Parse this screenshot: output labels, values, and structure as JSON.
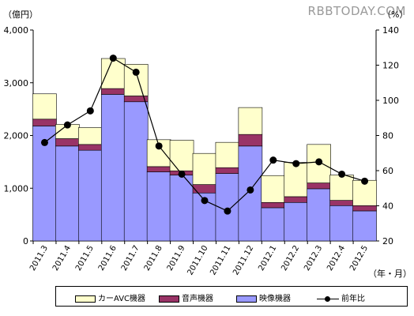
{
  "watermark": "RBBTODAY.COM",
  "chart_data": {
    "type": "bar",
    "stacked": true,
    "categories": [
      "2011.3",
      "2011.4",
      "2011.5",
      "2011.6",
      "2011.7",
      "2011.8",
      "2011.9",
      "2011.10",
      "2011.11",
      "2011.12",
      "2012.1",
      "2012.2",
      "2012.3",
      "2012.4",
      "2012.5"
    ],
    "series": [
      {
        "name": "映像機器",
        "color": "#9999ff",
        "values": [
          2180,
          1800,
          1720,
          2780,
          2640,
          1310,
          1250,
          910,
          1280,
          1800,
          630,
          730,
          990,
          670,
          570
        ]
      },
      {
        "name": "音声機器",
        "color": "#993366",
        "values": [
          130,
          140,
          110,
          110,
          110,
          100,
          80,
          160,
          110,
          220,
          100,
          110,
          110,
          100,
          100
        ]
      },
      {
        "name": "カーAVC機器",
        "color": "#ffffcc",
        "values": [
          480,
          270,
          320,
          570,
          600,
          510,
          580,
          590,
          480,
          510,
          510,
          650,
          730,
          480,
          480
        ]
      }
    ],
    "line_series": {
      "name": "前年比",
      "color": "#000000",
      "axis": "right",
      "values": [
        76,
        86,
        94,
        124,
        116,
        74,
        58,
        43,
        37,
        49,
        66,
        64,
        65,
        58,
        54
      ]
    },
    "ylabel_left": "（億円）",
    "ylabel_right": "（%）",
    "xlabel": "（年・月）",
    "ylim_left": [
      0,
      4000
    ],
    "yticks_left": [
      "0",
      "1,000",
      "2,000",
      "3,000",
      "4,000"
    ],
    "ylim_right": [
      20,
      140
    ],
    "yticks_right": [
      "20",
      "40",
      "60",
      "80",
      "100",
      "120",
      "140"
    ],
    "legend_position": "bottom",
    "grid": false
  }
}
